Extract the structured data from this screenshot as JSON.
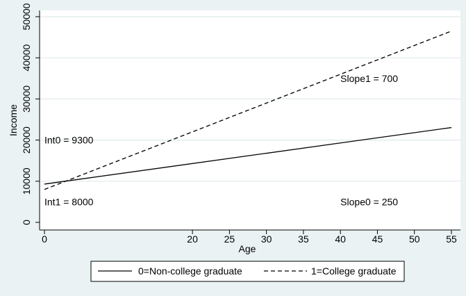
{
  "chart_data": {
    "type": "line",
    "xlabel": "Age",
    "ylabel": "Income",
    "xlim": [
      0,
      55
    ],
    "ylim": [
      0,
      50000
    ],
    "x_ticks": [
      0,
      20,
      25,
      30,
      35,
      40,
      45,
      50,
      55
    ],
    "y_ticks": [
      0,
      10000,
      20000,
      30000,
      40000,
      50000
    ],
    "grid": true,
    "legend_position": "bottom",
    "series": [
      {
        "name": "0=Non-college graduate",
        "style": "solid",
        "color": "#000000",
        "x": [
          0,
          55
        ],
        "y": [
          9300,
          23050
        ]
      },
      {
        "name": "1=College graduate",
        "style": "dashed",
        "color": "#000000",
        "x": [
          0,
          55
        ],
        "y": [
          8000,
          46500
        ]
      }
    ],
    "annotations": [
      {
        "text": "Int0 = 9300",
        "x": 0,
        "y": 20000
      },
      {
        "text": "Int1 = 8000",
        "x": 0,
        "y": 5000
      },
      {
        "text": "Slope1 = 700",
        "x": 40,
        "y": 35000
      },
      {
        "text": "Slope0 = 250",
        "x": 40,
        "y": 5000
      }
    ],
    "colors": {
      "background": "#eaf2f3",
      "plot_area": "#ffffff",
      "grid": "#dfe9eb"
    }
  }
}
